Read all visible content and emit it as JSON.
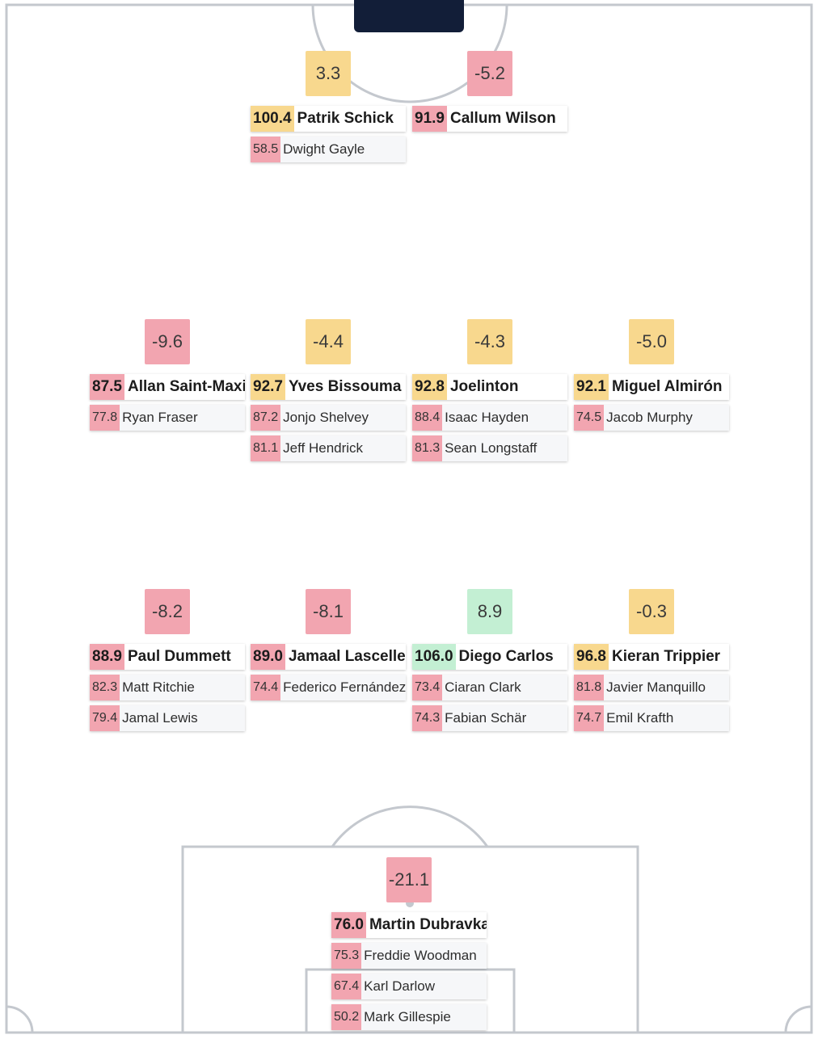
{
  "colors": {
    "red": "#f2a5b0",
    "yellow": "#f8d88e",
    "green": "#c3efd3",
    "line": "#c4c8ce",
    "dark": "#121e38"
  },
  "positions": {
    "st_left": {
      "delta": "3.3",
      "delta_color": "yellow",
      "starter": {
        "score": "100.4",
        "name": "Patrik Schick",
        "color": "yellow"
      },
      "subs": [
        {
          "score": "58.5",
          "name": "Dwight Gayle"
        }
      ]
    },
    "st_right": {
      "delta": "-5.2",
      "delta_color": "red",
      "starter": {
        "score": "91.9",
        "name": "Callum Wilson",
        "color": "red"
      },
      "subs": []
    },
    "mid_1": {
      "delta": "-9.6",
      "delta_color": "red",
      "starter": {
        "score": "87.5",
        "name": "Allan Saint-Maximin",
        "color": "red"
      },
      "subs": [
        {
          "score": "77.8",
          "name": "Ryan Fraser"
        }
      ]
    },
    "mid_2": {
      "delta": "-4.4",
      "delta_color": "yellow",
      "starter": {
        "score": "92.7",
        "name": "Yves Bissouma",
        "color": "yellow"
      },
      "subs": [
        {
          "score": "87.2",
          "name": "Jonjo Shelvey"
        },
        {
          "score": "81.1",
          "name": "Jeff Hendrick"
        }
      ]
    },
    "mid_3": {
      "delta": "-4.3",
      "delta_color": "yellow",
      "starter": {
        "score": "92.8",
        "name": "Joelinton",
        "color": "yellow"
      },
      "subs": [
        {
          "score": "88.4",
          "name": "Isaac Hayden"
        },
        {
          "score": "81.3",
          "name": "Sean Longstaff"
        }
      ]
    },
    "mid_4": {
      "delta": "-5.0",
      "delta_color": "yellow",
      "starter": {
        "score": "92.1",
        "name": "Miguel Almirón",
        "color": "yellow"
      },
      "subs": [
        {
          "score": "74.5",
          "name": "Jacob Murphy"
        }
      ]
    },
    "def_1": {
      "delta": "-8.2",
      "delta_color": "red",
      "starter": {
        "score": "88.9",
        "name": "Paul Dummett",
        "color": "red"
      },
      "subs": [
        {
          "score": "82.3",
          "name": "Matt Ritchie"
        },
        {
          "score": "79.4",
          "name": "Jamal Lewis"
        }
      ]
    },
    "def_2": {
      "delta": "-8.1",
      "delta_color": "red",
      "starter": {
        "score": "89.0",
        "name": "Jamaal Lascelles",
        "color": "red"
      },
      "subs": [
        {
          "score": "74.4",
          "name": "Federico Fernández"
        }
      ]
    },
    "def_3": {
      "delta": "8.9",
      "delta_color": "green",
      "starter": {
        "score": "106.0",
        "name": "Diego Carlos",
        "color": "green"
      },
      "subs": [
        {
          "score": "73.4",
          "name": "Ciaran Clark"
        },
        {
          "score": "74.3",
          "name": "Fabian Schär"
        }
      ]
    },
    "def_4": {
      "delta": "-0.3",
      "delta_color": "yellow",
      "starter": {
        "score": "96.8",
        "name": "Kieran Trippier",
        "color": "yellow"
      },
      "subs": [
        {
          "score": "81.8",
          "name": "Javier Manquillo"
        },
        {
          "score": "74.7",
          "name": "Emil Krafth"
        }
      ]
    },
    "gk": {
      "delta": "-21.1",
      "delta_color": "red",
      "starter": {
        "score": "76.0",
        "name": "Martin Dubravka",
        "color": "red"
      },
      "subs": [
        {
          "score": "75.3",
          "name": "Freddie Woodman"
        },
        {
          "score": "67.4",
          "name": "Karl Darlow"
        },
        {
          "score": "50.2",
          "name": "Mark Gillespie"
        }
      ]
    }
  }
}
